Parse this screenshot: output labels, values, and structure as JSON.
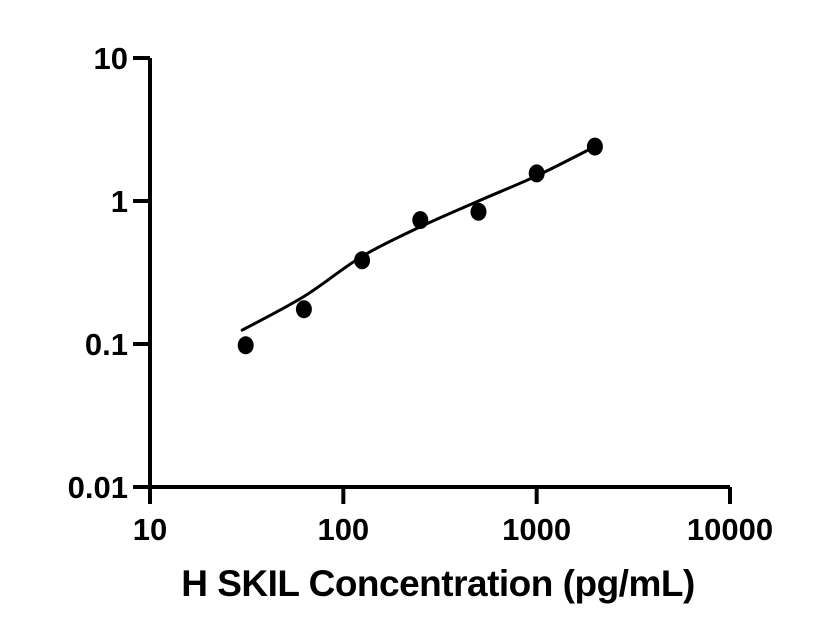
{
  "chart_data": {
    "type": "scatter",
    "title": "",
    "xlabel": "H SKIL Concentration (pg/mL)",
    "ylabel": "",
    "xscale": "log",
    "yscale": "log",
    "xlim": [
      10,
      10000
    ],
    "ylim": [
      0.01,
      10
    ],
    "grid": false,
    "legend": false,
    "background_color": "#ffffff",
    "axis_color": "#000000",
    "marker_color": "#000000",
    "line_color": "#000000",
    "x_ticks": [
      {
        "value": 10,
        "label": "10"
      },
      {
        "value": 100,
        "label": "100"
      },
      {
        "value": 1000,
        "label": "1000"
      },
      {
        "value": 10000,
        "label": "10000"
      }
    ],
    "y_ticks": [
      {
        "value": 10,
        "label": "10"
      },
      {
        "value": 1,
        "label": "1"
      },
      {
        "value": 0.1,
        "label": "0.1"
      },
      {
        "value": 0.01,
        "label": "0.01"
      }
    ],
    "series": [
      {
        "name": "standard-points",
        "type": "scatter",
        "x": [
          31.25,
          62.5,
          125,
          250,
          500,
          1000,
          2000
        ],
        "y": [
          0.098,
          0.175,
          0.385,
          0.735,
          0.84,
          1.56,
          2.4
        ]
      },
      {
        "name": "fit-line",
        "type": "line",
        "x": [
          30,
          62.5,
          125,
          250,
          500,
          1000,
          2000
        ],
        "y": [
          0.125,
          0.215,
          0.41,
          0.66,
          1.0,
          1.5,
          2.4
        ]
      }
    ]
  }
}
